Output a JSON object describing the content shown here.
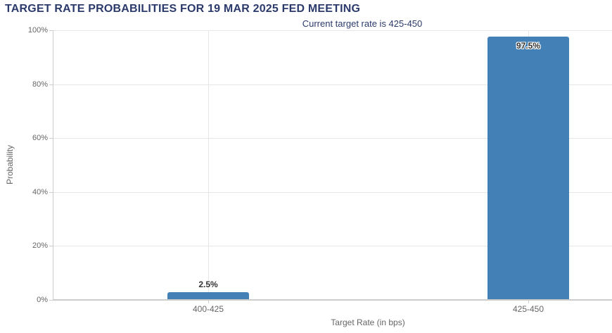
{
  "chart_data": {
    "type": "bar",
    "title": "TARGET RATE PROBABILITIES FOR 19 MAR 2025 FED MEETING",
    "subtitle": "Current target rate is 425-450",
    "categories": [
      "400-425",
      "425-450"
    ],
    "values": [
      2.5,
      97.5
    ],
    "value_labels": [
      "2.5%",
      "97.5%"
    ],
    "xlabel": "Target Rate (in bps)",
    "ylabel": "Probability",
    "ylim": [
      0,
      100
    ],
    "ytick_interval": 20,
    "ytick_labels": [
      "0%",
      "20%",
      "40%",
      "60%",
      "80%",
      "100%"
    ],
    "grid": true,
    "legend": "none",
    "colors": {
      "bar": "#4380b6",
      "title": "#2b3a6b",
      "subtitle": "#2b3a6b",
      "axis_text": "#666666",
      "value_label": "#333333",
      "grid_line": "#e6e6e6",
      "axis_line": "#cccccc"
    }
  }
}
